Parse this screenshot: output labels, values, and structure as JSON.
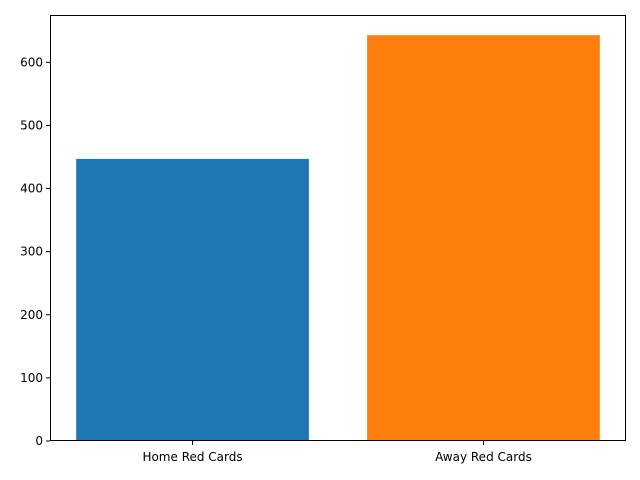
{
  "chart_data": {
    "type": "bar",
    "title": "",
    "xlabel": "",
    "ylabel": "",
    "categories": [
      "Home Red Cards",
      "Away Red Cards"
    ],
    "values": [
      447,
      643
    ],
    "colors": [
      "#1f77b4",
      "#ff7f0e"
    ],
    "ylim": [
      0,
      675
    ],
    "yticks": [
      0,
      100,
      200,
      300,
      400,
      500,
      600
    ],
    "grid": false,
    "legend": "none"
  }
}
